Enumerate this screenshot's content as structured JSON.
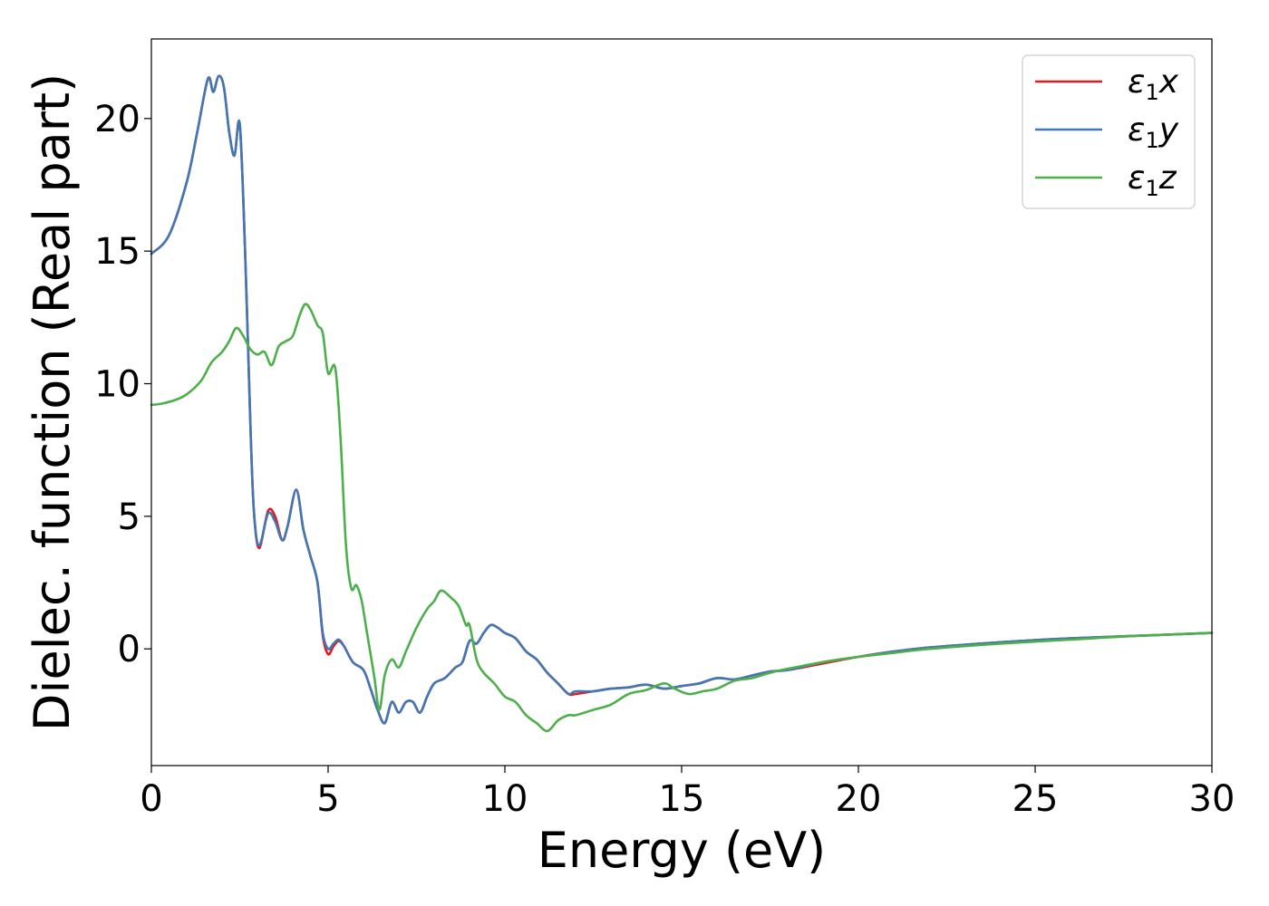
{
  "chart_data": {
    "type": "line",
    "title": "",
    "xlabel": "Energy (eV)",
    "ylabel": "Dielec. function (Real part)",
    "xlim": [
      0,
      30
    ],
    "ylim": [
      -4.4,
      23.0
    ],
    "xticks": [
      0,
      5,
      10,
      15,
      20,
      25,
      30
    ],
    "yticks": [
      0,
      5,
      10,
      15,
      20
    ],
    "grid": false,
    "legend_position": "top-right",
    "series": [
      {
        "name": "ε₁x",
        "legend_base": "ε",
        "legend_sub": "1",
        "legend_suffix": "x",
        "color": "#e41a1c",
        "x": [
          0,
          0.5,
          1.0,
          1.3,
          1.6,
          1.75,
          1.9,
          2.05,
          2.2,
          2.35,
          2.5,
          2.65,
          2.8,
          2.9,
          3.05,
          3.3,
          3.5,
          3.7,
          3.85,
          4.1,
          4.3,
          4.5,
          4.7,
          4.85,
          5.0,
          5.15,
          5.3,
          5.45,
          5.7,
          6.0,
          6.2,
          6.4,
          6.6,
          6.8,
          7.0,
          7.2,
          7.4,
          7.6,
          7.8,
          8.0,
          8.3,
          8.6,
          8.8,
          9.0,
          9.2,
          9.4,
          9.6,
          9.8,
          10.0,
          10.3,
          10.6,
          10.9,
          11.2,
          11.5,
          11.8,
          12.0,
          12.5,
          13.0,
          13.5,
          14.0,
          14.5,
          15.0,
          15.5,
          16.0,
          16.5,
          17.0,
          17.5,
          18.0,
          19.0,
          20.0,
          21.0,
          22.0,
          24.0,
          26.0,
          28.0,
          30.0
        ],
        "y": [
          14.9,
          15.6,
          17.6,
          19.5,
          21.5,
          21.0,
          21.6,
          21.2,
          19.5,
          18.6,
          19.8,
          15.0,
          8.5,
          5.2,
          3.8,
          5.2,
          5.0,
          4.1,
          4.6,
          6.0,
          4.5,
          3.5,
          2.5,
          0.5,
          -0.2,
          0.1,
          0.3,
          0.1,
          -0.5,
          -0.8,
          -1.5,
          -2.3,
          -2.8,
          -2.0,
          -2.4,
          -2.0,
          -2.0,
          -2.4,
          -1.8,
          -1.3,
          -1.1,
          -0.7,
          -0.5,
          0.3,
          0.2,
          0.6,
          0.9,
          0.8,
          0.6,
          0.4,
          -0.1,
          -0.4,
          -0.9,
          -1.3,
          -1.7,
          -1.7,
          -1.6,
          -1.5,
          -1.45,
          -1.35,
          -1.5,
          -1.4,
          -1.3,
          -1.1,
          -1.15,
          -1.0,
          -0.85,
          -0.8,
          -0.55,
          -0.3,
          -0.1,
          0.05,
          0.25,
          0.4,
          0.5,
          0.6
        ]
      },
      {
        "name": "ε₁y",
        "legend_base": "ε",
        "legend_sub": "1",
        "legend_suffix": "y",
        "color": "#3f78b4",
        "x": [
          0,
          0.5,
          1.0,
          1.3,
          1.6,
          1.75,
          1.9,
          2.05,
          2.2,
          2.35,
          2.5,
          2.65,
          2.8,
          2.9,
          3.05,
          3.3,
          3.5,
          3.7,
          3.85,
          4.1,
          4.3,
          4.5,
          4.7,
          4.85,
          5.0,
          5.15,
          5.3,
          5.45,
          5.7,
          6.0,
          6.2,
          6.4,
          6.6,
          6.8,
          7.0,
          7.2,
          7.4,
          7.6,
          7.8,
          8.0,
          8.3,
          8.6,
          8.8,
          9.0,
          9.2,
          9.4,
          9.6,
          9.8,
          10.0,
          10.3,
          10.6,
          10.9,
          11.2,
          11.5,
          11.8,
          12.0,
          12.5,
          13.0,
          13.5,
          14.0,
          14.5,
          15.0,
          15.5,
          16.0,
          16.5,
          17.0,
          17.5,
          18.0,
          19.0,
          20.0,
          21.0,
          22.0,
          24.0,
          26.0,
          28.0,
          30.0
        ],
        "y": [
          14.9,
          15.6,
          17.6,
          19.5,
          21.5,
          21.0,
          21.6,
          21.2,
          19.5,
          18.6,
          19.8,
          15.0,
          8.5,
          5.2,
          3.9,
          5.1,
          4.8,
          4.1,
          4.6,
          6.0,
          4.5,
          3.5,
          2.5,
          0.6,
          0.0,
          0.2,
          0.35,
          0.1,
          -0.5,
          -0.8,
          -1.5,
          -2.3,
          -2.8,
          -2.0,
          -2.4,
          -2.0,
          -2.0,
          -2.4,
          -1.8,
          -1.3,
          -1.1,
          -0.7,
          -0.5,
          0.3,
          0.2,
          0.6,
          0.9,
          0.8,
          0.6,
          0.4,
          -0.1,
          -0.4,
          -0.9,
          -1.3,
          -1.7,
          -1.6,
          -1.6,
          -1.5,
          -1.45,
          -1.35,
          -1.5,
          -1.4,
          -1.3,
          -1.1,
          -1.15,
          -1.0,
          -0.85,
          -0.8,
          -0.5,
          -0.3,
          -0.1,
          0.05,
          0.25,
          0.4,
          0.5,
          0.6
        ]
      },
      {
        "name": "ε₁z",
        "legend_base": "ε",
        "legend_sub": "1",
        "legend_suffix": "z",
        "color": "#4daf4a",
        "x": [
          0,
          0.3,
          0.7,
          1.0,
          1.4,
          1.7,
          2.0,
          2.2,
          2.4,
          2.6,
          2.8,
          3.0,
          3.2,
          3.4,
          3.6,
          3.8,
          4.0,
          4.2,
          4.35,
          4.5,
          4.7,
          4.85,
          5.0,
          5.2,
          5.35,
          5.5,
          5.65,
          5.8,
          5.95,
          6.1,
          6.3,
          6.45,
          6.6,
          6.8,
          7.0,
          7.2,
          7.5,
          7.8,
          8.0,
          8.2,
          8.5,
          8.7,
          8.9,
          9.0,
          9.2,
          9.4,
          9.7,
          10.0,
          10.3,
          10.6,
          10.9,
          11.2,
          11.5,
          11.8,
          12.0,
          12.5,
          13.0,
          13.5,
          14.0,
          14.5,
          14.8,
          15.2,
          15.6,
          16.0,
          16.5,
          17.0,
          17.5,
          18.0,
          19.0,
          20.0,
          21.0,
          22.0,
          24.0,
          26.0,
          28.0,
          30.0
        ],
        "y": [
          9.2,
          9.25,
          9.4,
          9.6,
          10.1,
          10.8,
          11.2,
          11.6,
          12.1,
          11.8,
          11.3,
          11.1,
          11.2,
          10.7,
          11.4,
          11.6,
          11.8,
          12.6,
          13.0,
          12.8,
          12.2,
          11.9,
          10.4,
          10.6,
          8.0,
          4.0,
          2.3,
          2.4,
          1.8,
          0.6,
          -1.0,
          -2.3,
          -1.0,
          -0.4,
          -0.7,
          -0.1,
          0.8,
          1.5,
          1.8,
          2.2,
          1.9,
          1.6,
          0.9,
          0.9,
          -0.4,
          -0.9,
          -1.3,
          -1.8,
          -2.0,
          -2.5,
          -2.8,
          -3.1,
          -2.7,
          -2.5,
          -2.5,
          -2.3,
          -2.1,
          -1.7,
          -1.55,
          -1.3,
          -1.5,
          -1.7,
          -1.6,
          -1.5,
          -1.2,
          -1.1,
          -0.9,
          -0.75,
          -0.5,
          -0.3,
          -0.15,
          0.0,
          0.2,
          0.35,
          0.5,
          0.6
        ]
      }
    ]
  }
}
